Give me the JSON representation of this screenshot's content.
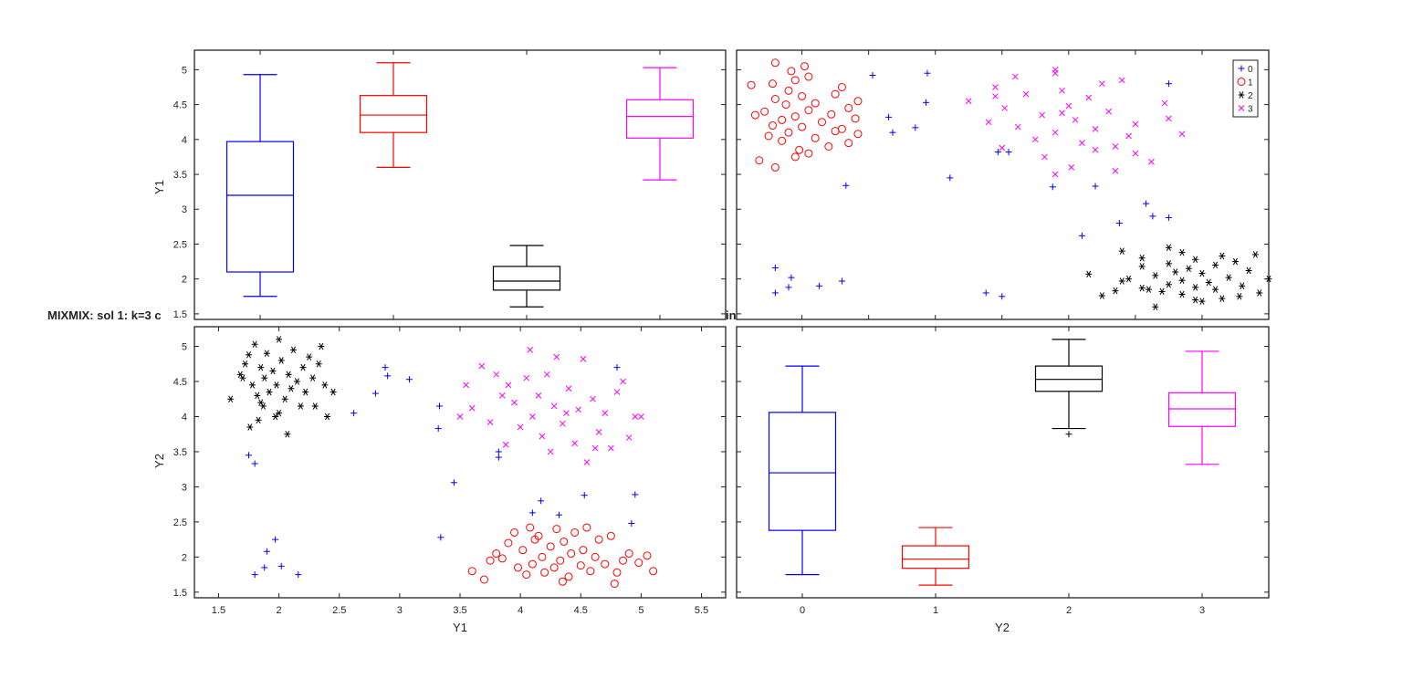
{
  "chart_data": {
    "type": "scatter",
    "title": "MIXMIX: sol 1: k=3 c",
    "title_fragment": "in",
    "variables": [
      "Y1",
      "Y2"
    ],
    "legend": {
      "placement": "top-right",
      "entries": [
        "0",
        "1",
        "2",
        "3"
      ]
    },
    "colors": {
      "0": "#0000ff",
      "1": "#ff0000",
      "2": "#000000",
      "3": "#ff00ff"
    },
    "markers": {
      "0": "plus",
      "1": "circle",
      "2": "asterisk",
      "3": "cross"
    },
    "categories": [
      "0",
      "1",
      "2",
      "3"
    ],
    "y_ticks": [
      "1.5",
      "2",
      "2.5",
      "3",
      "3.5",
      "4",
      "4.5",
      "5"
    ],
    "y_tick_values": [
      1.5,
      2,
      2.5,
      3,
      3.5,
      4,
      4.5,
      5
    ],
    "x_ticks_y1": [
      "1.5",
      "2",
      "2.5",
      "3",
      "3.5",
      "4",
      "4.5",
      "5",
      "5.5"
    ],
    "x_tick_values_y1": [
      1.5,
      2,
      2.5,
      3,
      3.5,
      4,
      4.5,
      5,
      5.5
    ],
    "ylim": [
      1.42,
      5.28
    ],
    "xlim_y1": [
      1.3,
      5.7
    ],
    "xlim_y2": [
      -0.49,
      3.5
    ],
    "axis_labels": {
      "y1": "Y1",
      "y2": "Y2"
    },
    "boxplots": {
      "Y1": [
        {
          "group": "0",
          "min": 1.75,
          "q1": 2.1,
          "median": 3.2,
          "q3": 3.97,
          "max": 4.93,
          "outliers": []
        },
        {
          "group": "1",
          "min": 3.6,
          "q1": 4.1,
          "median": 4.35,
          "q3": 4.63,
          "max": 5.1,
          "outliers": []
        },
        {
          "group": "2",
          "min": 1.6,
          "q1": 1.84,
          "median": 1.97,
          "q3": 2.18,
          "max": 2.48,
          "outliers": []
        },
        {
          "group": "3",
          "min": 3.42,
          "q1": 4.02,
          "median": 4.33,
          "q3": 4.57,
          "max": 5.03,
          "outliers": []
        }
      ],
      "Y2": [
        {
          "group": "0",
          "min": 1.75,
          "q1": 2.38,
          "median": 3.2,
          "q3": 4.06,
          "max": 4.72,
          "outliers": []
        },
        {
          "group": "1",
          "min": 1.6,
          "q1": 1.84,
          "median": 1.97,
          "q3": 2.16,
          "max": 2.42,
          "outliers": []
        },
        {
          "group": "2",
          "min": 3.83,
          "q1": 4.36,
          "median": 4.53,
          "q3": 4.72,
          "max": 5.1,
          "outliers": [
            3.75
          ]
        },
        {
          "group": "3",
          "min": 3.32,
          "q1": 3.86,
          "median": 4.11,
          "q3": 4.34,
          "max": 4.93,
          "outliers": []
        }
      ]
    },
    "series": [
      {
        "name": "0",
        "points": [
          [
            1.75,
            3.45
          ],
          [
            1.8,
            3.33
          ],
          [
            1.8,
            1.75
          ],
          [
            1.88,
            1.85
          ],
          [
            1.9,
            2.08
          ],
          [
            1.97,
            2.25
          ],
          [
            2.02,
            1.87
          ],
          [
            2.16,
            1.75
          ],
          [
            2.62,
            4.05
          ],
          [
            2.8,
            4.33
          ],
          [
            2.88,
            4.7
          ],
          [
            2.9,
            4.58
          ],
          [
            3.08,
            4.53
          ],
          [
            3.32,
            3.83
          ],
          [
            3.33,
            4.15
          ],
          [
            3.34,
            2.28
          ],
          [
            3.45,
            3.06
          ],
          [
            3.82,
            3.5
          ],
          [
            3.82,
            3.42
          ],
          [
            4.1,
            2.63
          ],
          [
            4.17,
            2.8
          ],
          [
            4.32,
            2.6
          ],
          [
            4.53,
            2.88
          ],
          [
            4.8,
            4.7
          ],
          [
            4.92,
            2.48
          ],
          [
            4.95,
            2.89
          ]
        ]
      },
      {
        "name": "1",
        "points": [
          [
            3.6,
            1.8
          ],
          [
            3.7,
            1.68
          ],
          [
            3.75,
            1.95
          ],
          [
            3.8,
            2.05
          ],
          [
            3.85,
            1.98
          ],
          [
            3.9,
            2.2
          ],
          [
            3.95,
            2.35
          ],
          [
            3.98,
            1.85
          ],
          [
            4.02,
            2.1
          ],
          [
            4.05,
            1.75
          ],
          [
            4.08,
            2.42
          ],
          [
            4.1,
            1.9
          ],
          [
            4.15,
            2.3
          ],
          [
            4.18,
            2.0
          ],
          [
            4.2,
            1.78
          ],
          [
            4.25,
            2.15
          ],
          [
            4.28,
            1.85
          ],
          [
            4.3,
            2.4
          ],
          [
            4.33,
            1.95
          ],
          [
            4.36,
            2.22
          ],
          [
            4.4,
            1.72
          ],
          [
            4.42,
            2.05
          ],
          [
            4.45,
            2.35
          ],
          [
            4.5,
            1.88
          ],
          [
            4.52,
            2.1
          ],
          [
            4.55,
            2.42
          ],
          [
            4.58,
            1.8
          ],
          [
            4.62,
            2.0
          ],
          [
            4.65,
            2.25
          ],
          [
            4.7,
            1.9
          ],
          [
            4.75,
            2.3
          ],
          [
            4.8,
            1.78
          ],
          [
            4.85,
            1.95
          ],
          [
            4.9,
            2.05
          ],
          [
            4.98,
            1.92
          ],
          [
            5.05,
            2.02
          ],
          [
            5.1,
            1.8
          ],
          [
            4.78,
            1.62
          ],
          [
            4.35,
            1.65
          ],
          [
            4.12,
            2.25
          ]
        ]
      },
      {
        "name": "2",
        "points": [
          [
            1.6,
            4.25
          ],
          [
            1.68,
            4.6
          ],
          [
            1.72,
            4.75
          ],
          [
            1.75,
            4.88
          ],
          [
            1.78,
            4.45
          ],
          [
            1.8,
            5.03
          ],
          [
            1.82,
            4.3
          ],
          [
            1.83,
            3.95
          ],
          [
            1.85,
            4.7
          ],
          [
            1.87,
            4.15
          ],
          [
            1.88,
            4.55
          ],
          [
            1.9,
            4.9
          ],
          [
            1.92,
            4.35
          ],
          [
            1.95,
            4.65
          ],
          [
            1.97,
            4.0
          ],
          [
            1.98,
            4.45
          ],
          [
            2.0,
            5.1
          ],
          [
            2.02,
            4.8
          ],
          [
            2.05,
            4.25
          ],
          [
            2.07,
            3.75
          ],
          [
            2.08,
            4.6
          ],
          [
            2.1,
            4.4
          ],
          [
            2.12,
            4.95
          ],
          [
            2.15,
            4.5
          ],
          [
            2.18,
            4.15
          ],
          [
            2.2,
            4.7
          ],
          [
            2.22,
            4.35
          ],
          [
            2.25,
            4.85
          ],
          [
            2.28,
            4.55
          ],
          [
            2.3,
            4.15
          ],
          [
            2.33,
            4.75
          ],
          [
            2.35,
            5.0
          ],
          [
            2.38,
            4.45
          ],
          [
            2.4,
            4.0
          ],
          [
            2.45,
            4.35
          ],
          [
            1.7,
            4.55
          ],
          [
            1.76,
            3.85
          ],
          [
            2.0,
            4.05
          ],
          [
            1.85,
            4.2
          ]
        ]
      },
      {
        "name": "3",
        "points": [
          [
            3.5,
            4.0
          ],
          [
            3.55,
            4.45
          ],
          [
            3.6,
            4.12
          ],
          [
            3.68,
            4.72
          ],
          [
            3.75,
            3.92
          ],
          [
            3.8,
            4.6
          ],
          [
            3.85,
            4.3
          ],
          [
            3.88,
            3.6
          ],
          [
            3.9,
            4.45
          ],
          [
            3.95,
            4.2
          ],
          [
            4.0,
            3.85
          ],
          [
            4.05,
            4.55
          ],
          [
            4.08,
            4.95
          ],
          [
            4.1,
            4.0
          ],
          [
            4.15,
            4.3
          ],
          [
            4.18,
            3.72
          ],
          [
            4.22,
            4.6
          ],
          [
            4.25,
            3.5
          ],
          [
            4.28,
            4.15
          ],
          [
            4.3,
            4.85
          ],
          [
            4.35,
            3.9
          ],
          [
            4.4,
            4.4
          ],
          [
            4.45,
            3.62
          ],
          [
            4.48,
            4.1
          ],
          [
            4.52,
            4.82
          ],
          [
            4.55,
            3.35
          ],
          [
            4.6,
            4.25
          ],
          [
            4.65,
            3.78
          ],
          [
            4.7,
            4.05
          ],
          [
            4.75,
            3.55
          ],
          [
            4.8,
            4.35
          ],
          [
            4.85,
            4.5
          ],
          [
            4.9,
            3.7
          ],
          [
            4.95,
            4.0
          ],
          [
            5.0,
            4.0
          ],
          [
            4.62,
            3.55
          ],
          [
            4.38,
            4.05
          ]
        ]
      }
    ]
  }
}
